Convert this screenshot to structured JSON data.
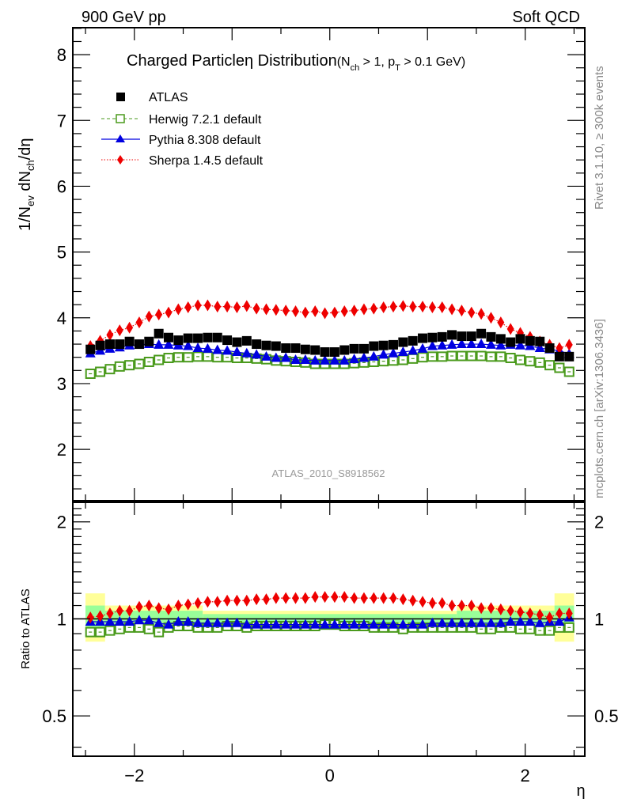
{
  "header": {
    "left_label": "900 GeV pp",
    "right_label": "Soft QCD"
  },
  "side_labels": {
    "rivet": "Rivet 3.1.10, ≥ 300k events",
    "mcplots": "mcplots.cern.ch [arXiv:1306.3436]"
  },
  "analysis_id": "ATLAS_2010_S8918562",
  "chart_data": [
    {
      "type": "scatter",
      "panel": "main",
      "title": "Charged Particle η Distribution",
      "title_parts": {
        "main": "Charged Particle",
        "eta": "η",
        "rest": " Distribution",
        "cond_open": "(N",
        "cond_sub1": "ch",
        "cond_mid": " > 1, p",
        "cond_sub2": "T",
        "cond_close": " > 0.1 GeV)"
      },
      "ylabel": "1/N_ev dN_ch/dη",
      "ylabel_parts": {
        "a": "1/N",
        "sub1": "ev",
        "b": " dN",
        "sub2": "ch",
        "c": "/dη"
      },
      "xlabel": "η",
      "xlim": [
        -2.63,
        2.61
      ],
      "ylim": [
        1.22,
        8.41
      ],
      "yticks": [
        2,
        3,
        4,
        5,
        6,
        7,
        8
      ],
      "ytick_labels": [
        "2",
        "3",
        "4",
        "5",
        "6",
        "7",
        "8"
      ],
      "xticks": [
        -2,
        0,
        2
      ],
      "x": [
        -2.45,
        -2.35,
        -2.25,
        -2.15,
        -2.05,
        -1.95,
        -1.85,
        -1.75,
        -1.65,
        -1.55,
        -1.45,
        -1.35,
        -1.25,
        -1.15,
        -1.05,
        -0.95,
        -0.85,
        -0.75,
        -0.65,
        -0.55,
        -0.45,
        -0.35,
        -0.25,
        -0.15,
        -0.05,
        0.05,
        0.15,
        0.25,
        0.35,
        0.45,
        0.55,
        0.65,
        0.75,
        0.85,
        0.95,
        1.05,
        1.15,
        1.25,
        1.35,
        1.45,
        1.55,
        1.65,
        1.75,
        1.85,
        1.95,
        2.05,
        2.15,
        2.25,
        2.35,
        2.45
      ],
      "legend_position": "top-left",
      "series": [
        {
          "name": "ATLAS",
          "marker": "square-filled",
          "color": "#000000",
          "values": [
            3.52,
            3.58,
            3.6,
            3.6,
            3.64,
            3.6,
            3.64,
            3.76,
            3.7,
            3.66,
            3.69,
            3.69,
            3.7,
            3.7,
            3.66,
            3.63,
            3.65,
            3.6,
            3.58,
            3.57,
            3.54,
            3.54,
            3.52,
            3.51,
            3.48,
            3.48,
            3.51,
            3.53,
            3.53,
            3.57,
            3.58,
            3.59,
            3.63,
            3.65,
            3.69,
            3.7,
            3.71,
            3.74,
            3.72,
            3.72,
            3.76,
            3.71,
            3.68,
            3.63,
            3.68,
            3.65,
            3.64,
            3.54,
            3.41,
            3.41
          ]
        },
        {
          "name": "Herwig 7.2.1 default",
          "marker": "square-open",
          "line": "dashed",
          "color": "#4a9a1c",
          "values": [
            3.15,
            3.18,
            3.22,
            3.26,
            3.28,
            3.3,
            3.33,
            3.36,
            3.39,
            3.4,
            3.4,
            3.41,
            3.41,
            3.4,
            3.4,
            3.39,
            3.39,
            3.38,
            3.37,
            3.35,
            3.34,
            3.33,
            3.32,
            3.3,
            3.3,
            3.3,
            3.3,
            3.31,
            3.32,
            3.33,
            3.34,
            3.35,
            3.36,
            3.38,
            3.4,
            3.41,
            3.41,
            3.42,
            3.42,
            3.42,
            3.42,
            3.41,
            3.41,
            3.39,
            3.36,
            3.34,
            3.32,
            3.28,
            3.24,
            3.18
          ]
        },
        {
          "name": "Pythia 8.308 default",
          "marker": "triangle-up-filled",
          "line": "solid",
          "color": "#0000e0",
          "values": [
            3.46,
            3.5,
            3.53,
            3.55,
            3.58,
            3.59,
            3.6,
            3.59,
            3.59,
            3.58,
            3.57,
            3.54,
            3.53,
            3.51,
            3.5,
            3.48,
            3.46,
            3.44,
            3.41,
            3.39,
            3.39,
            3.36,
            3.36,
            3.35,
            3.35,
            3.35,
            3.35,
            3.37,
            3.39,
            3.41,
            3.44,
            3.46,
            3.48,
            3.5,
            3.53,
            3.57,
            3.58,
            3.59,
            3.6,
            3.6,
            3.6,
            3.59,
            3.58,
            3.59,
            3.58,
            3.57,
            3.54,
            3.52,
            3.5,
            3.45
          ]
        },
        {
          "name": "Sherpa 1.4.5 default",
          "marker": "diamond-filled",
          "line": "dotted",
          "color": "#ee0000",
          "values": [
            3.57,
            3.65,
            3.74,
            3.81,
            3.85,
            3.93,
            4.02,
            4.05,
            4.08,
            4.13,
            4.16,
            4.19,
            4.19,
            4.17,
            4.17,
            4.16,
            4.18,
            4.14,
            4.13,
            4.12,
            4.11,
            4.1,
            4.08,
            4.1,
            4.07,
            4.08,
            4.1,
            4.11,
            4.13,
            4.14,
            4.16,
            4.17,
            4.18,
            4.17,
            4.17,
            4.16,
            4.16,
            4.13,
            4.11,
            4.08,
            4.06,
            4.0,
            3.93,
            3.83,
            3.77,
            3.71,
            3.64,
            3.59,
            3.54,
            3.59
          ]
        }
      ]
    },
    {
      "type": "scatter",
      "panel": "ratio",
      "ylabel": "Ratio to ATLAS",
      "yscale": "log",
      "ylim": [
        0.375,
        2.3
      ],
      "yticks": [
        0.5,
        1,
        2
      ],
      "ytick_labels": [
        "0.5",
        "1",
        "2"
      ],
      "xlabel": "η",
      "xticks": [
        -2,
        0,
        2
      ],
      "xtick_labels": [
        "−2",
        "0",
        "2"
      ],
      "reference_line": 1,
      "bands": {
        "note": "ATLAS uncertainty band (yellow = total, green = stat)",
        "yellow_color": "#ffff99",
        "green_color": "#99ff99",
        "segments": [
          {
            "x": [
              -2.5,
              -2.3
            ],
            "yellow": [
              0.85,
              1.2
            ],
            "green": [
              0.93,
              1.1
            ]
          },
          {
            "x": [
              -2.3,
              -1.3
            ],
            "yellow": [
              0.93,
              1.1
            ],
            "green": [
              0.96,
              1.06
            ]
          },
          {
            "x": [
              -1.3,
              1.3
            ],
            "yellow": [
              0.95,
              1.06
            ],
            "green": [
              0.97,
              1.035
            ]
          },
          {
            "x": [
              1.3,
              2.3
            ],
            "yellow": [
              0.93,
              1.1
            ],
            "green": [
              0.96,
              1.06
            ]
          },
          {
            "x": [
              2.3,
              2.5
            ],
            "yellow": [
              0.85,
              1.2
            ],
            "green": [
              0.93,
              1.1
            ]
          }
        ]
      },
      "series": [
        {
          "name": "Herwig 7.2.1 default",
          "values": [
            0.91,
            0.91,
            0.92,
            0.93,
            0.94,
            0.94,
            0.93,
            0.91,
            0.94,
            0.95,
            0.95,
            0.94,
            0.94,
            0.94,
            0.95,
            0.95,
            0.94,
            0.95,
            0.95,
            0.95,
            0.95,
            0.95,
            0.95,
            0.95,
            0.96,
            0.96,
            0.95,
            0.95,
            0.95,
            0.94,
            0.94,
            0.94,
            0.93,
            0.94,
            0.94,
            0.94,
            0.94,
            0.94,
            0.94,
            0.94,
            0.93,
            0.93,
            0.94,
            0.94,
            0.93,
            0.93,
            0.92,
            0.92,
            0.94,
            0.94
          ]
        },
        {
          "name": "Pythia 8.308 default",
          "values": [
            0.98,
            0.98,
            0.98,
            0.98,
            0.98,
            0.99,
            0.99,
            0.97,
            0.96,
            0.98,
            0.98,
            0.97,
            0.97,
            0.97,
            0.97,
            0.97,
            0.96,
            0.96,
            0.96,
            0.96,
            0.96,
            0.96,
            0.96,
            0.96,
            0.96,
            0.96,
            0.96,
            0.96,
            0.96,
            0.96,
            0.96,
            0.96,
            0.96,
            0.96,
            0.96,
            0.97,
            0.97,
            0.97,
            0.97,
            0.97,
            0.97,
            0.97,
            0.97,
            0.98,
            0.98,
            0.98,
            0.97,
            0.98,
            0.98,
            1.01
          ]
        },
        {
          "name": "Sherpa 1.4.5 default",
          "values": [
            1.01,
            1.02,
            1.04,
            1.06,
            1.06,
            1.09,
            1.1,
            1.08,
            1.07,
            1.1,
            1.11,
            1.12,
            1.13,
            1.13,
            1.14,
            1.14,
            1.14,
            1.15,
            1.15,
            1.16,
            1.16,
            1.16,
            1.16,
            1.17,
            1.17,
            1.17,
            1.17,
            1.16,
            1.16,
            1.16,
            1.16,
            1.16,
            1.15,
            1.14,
            1.13,
            1.12,
            1.12,
            1.1,
            1.1,
            1.1,
            1.08,
            1.08,
            1.07,
            1.06,
            1.05,
            1.04,
            1.03,
            1.01,
            1.04,
            1.04
          ]
        }
      ]
    }
  ]
}
